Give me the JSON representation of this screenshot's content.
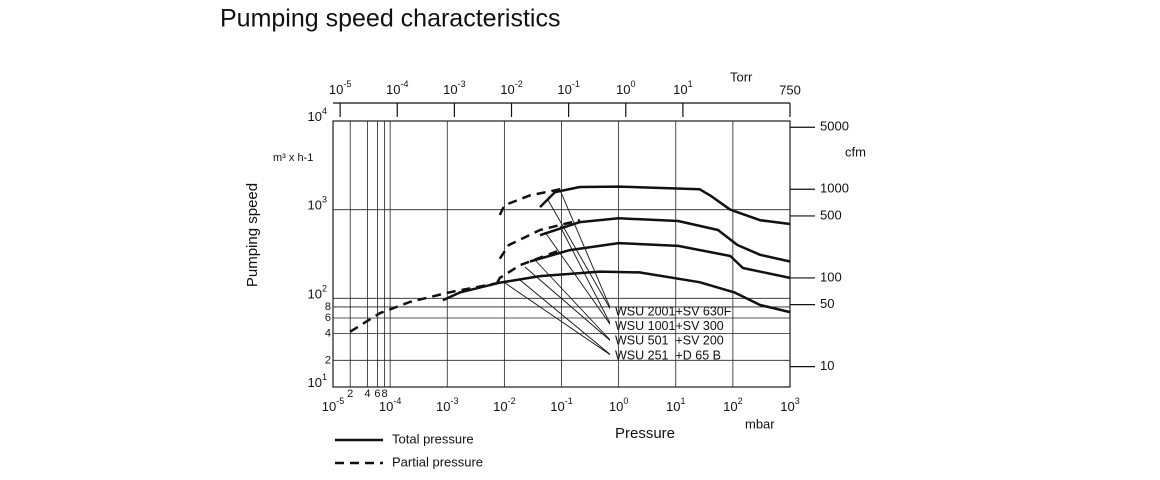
{
  "chart_data": {
    "type": "line",
    "title": "Pumping speed characteristics",
    "y_label": "Pumping speed",
    "y_unit": "m³ x h-1",
    "x_label": "Pressure",
    "x_unit": "mbar",
    "x2_unit": "Torr",
    "y2_unit": "cfm",
    "log_x": true,
    "log_y": true,
    "grid": true,
    "xlim": [
      1e-05,
      1000
    ],
    "ylim": [
      10,
      10000
    ],
    "x2lim": [
      7.5e-06,
      750
    ],
    "y2lim": [
      5.886,
      5886
    ],
    "xticks": [
      {
        "value": 1e-05,
        "label": "10",
        "sup": "-5"
      },
      {
        "value": 2e-05,
        "label": "2"
      },
      {
        "value": 4e-05,
        "label": "4"
      },
      {
        "value": 6e-05,
        "label": "6"
      },
      {
        "value": 8e-05,
        "label": "8"
      },
      {
        "value": 0.0001,
        "label": "10",
        "sup": "-4"
      },
      {
        "value": 0.001,
        "label": "10",
        "sup": "-3"
      },
      {
        "value": 0.01,
        "label": "10",
        "sup": "-2"
      },
      {
        "value": 0.1,
        "label": "10",
        "sup": "-1"
      },
      {
        "value": 1,
        "label": "10",
        "sup": "0"
      },
      {
        "value": 10,
        "label": "10",
        "sup": "1"
      },
      {
        "value": 100,
        "label": "10",
        "sup": "2"
      },
      {
        "value": 1000,
        "label": "10",
        "sup": "3"
      }
    ],
    "yticks": [
      {
        "value": 10,
        "label": "10",
        "sup": "1"
      },
      {
        "value": 20,
        "label": "2"
      },
      {
        "value": 40,
        "label": "4"
      },
      {
        "value": 60,
        "label": "6"
      },
      {
        "value": 80,
        "label": "8"
      },
      {
        "value": 100,
        "label": "10",
        "sup": "2"
      },
      {
        "value": 1000,
        "label": "10",
        "sup": "3"
      },
      {
        "value": 10000,
        "label": "10",
        "sup": "4"
      }
    ],
    "x2ticks": [
      {
        "value": 1e-05,
        "label": "10",
        "sup": "-5"
      },
      {
        "value": 0.0001,
        "label": "10",
        "sup": "-4"
      },
      {
        "value": 0.001,
        "label": "10",
        "sup": "-3"
      },
      {
        "value": 0.01,
        "label": "10",
        "sup": "-2"
      },
      {
        "value": 0.1,
        "label": "10",
        "sup": "-1"
      },
      {
        "value": 1,
        "label": "10",
        "sup": "0"
      },
      {
        "value": 10,
        "label": "10",
        "sup": "1"
      },
      750
    ],
    "y2ticks": [
      10,
      50,
      100,
      500,
      1000,
      5000
    ],
    "legend": {
      "total": "Total pressure",
      "partial": "Partial pressure"
    },
    "models": [
      {
        "name": "WSU 2001+SV 630F",
        "total": {
          "x": [
            0.042,
            0.077,
            0.21,
            1,
            26,
            40,
            90,
            300,
            1000
          ],
          "y": [
            1070,
            1580,
            1800,
            1820,
            1700,
            1450,
            1000,
            760,
            690
          ]
        },
        "partial": {
          "x": [
            0.0083,
            0.01,
            0.028,
            0.115
          ],
          "y": [
            870,
            1120,
            1450,
            1740
          ]
        }
      },
      {
        "name": "WSU 1001+SV 300",
        "total": {
          "x": [
            0.042,
            0.21,
            1,
            11,
            55,
            120,
            300,
            1000
          ],
          "y": [
            515,
            725,
            800,
            745,
            590,
            400,
            310,
            260
          ]
        },
        "partial": {
          "x": [
            0.0083,
            0.012,
            0.042,
            0.21
          ],
          "y": [
            280,
            400,
            590,
            760
          ]
        }
      },
      {
        "name": "WSU 501  +SV 200",
        "total": {
          "x": [
            0.028,
            0.14,
            1,
            11,
            90,
            150,
            1000
          ],
          "y": [
            260,
            350,
            420,
            390,
            300,
            220,
            170
          ]
        },
        "partial": {
          "x": [
            0.0075,
            0.0083,
            0.019,
            0.095
          ],
          "y": [
            150,
            170,
            237,
            350
          ]
        }
      },
      {
        "name": "WSU 251  +D 65 B",
        "total": {
          "x": [
            0.00084,
            0.0017,
            0.0083,
            0.042,
            0.47,
            2.3,
            26,
            105,
            300,
            1000
          ],
          "y": [
            95,
            117,
            150,
            178,
            200,
            196,
            152,
            117,
            84,
            70
          ]
        },
        "partial": {
          "x": [
            2e-05,
            6.6e-05,
            0.00022,
            0.0011,
            0.0083
          ],
          "y": [
            42,
            68,
            91,
            117,
            150
          ]
        }
      }
    ]
  }
}
